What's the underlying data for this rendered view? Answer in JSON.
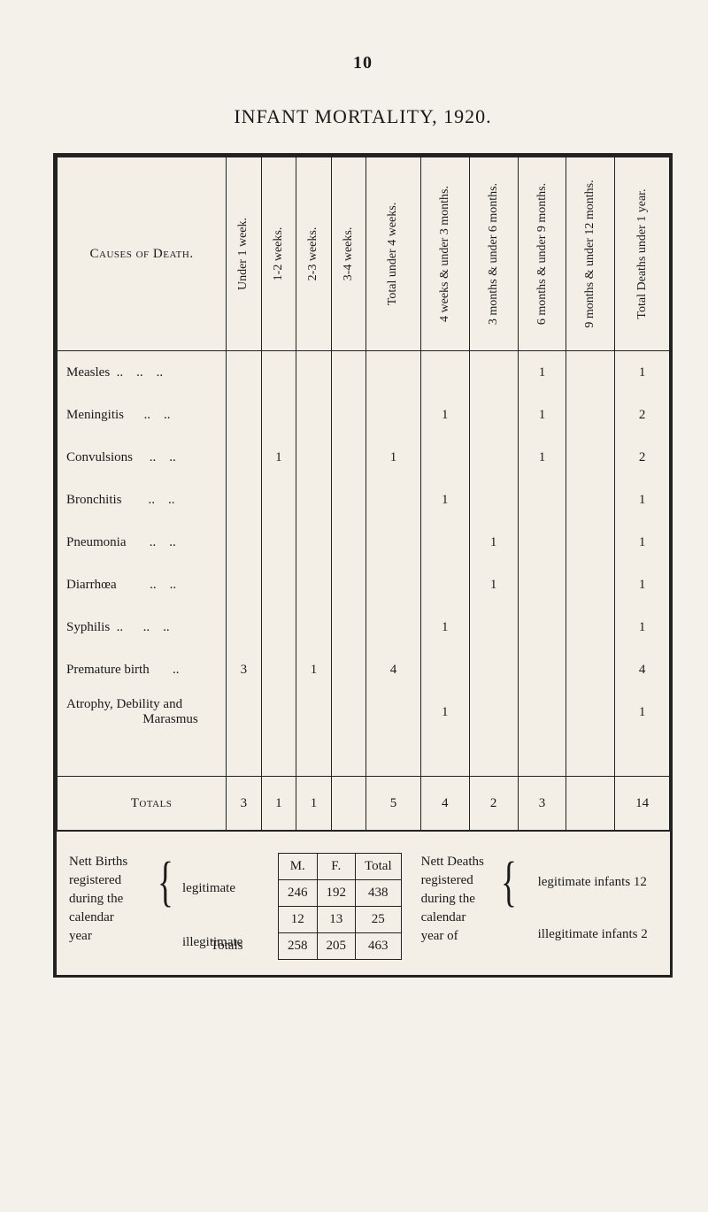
{
  "page_number": "10",
  "title": "INFANT MORTALITY, 1920.",
  "main_table": {
    "caption_col": "Causes of Death.",
    "columns": [
      "Under 1 week.",
      "1-2 weeks.",
      "2-3 weeks.",
      "3-4 weeks.",
      "Total under 4 weeks.",
      "4 weeks & under 3 months.",
      "3 months & under 6 months.",
      "6 months & under 9 months.",
      "9 months & under 12 months.",
      "Total Deaths under 1 year."
    ],
    "rows": [
      {
        "name": "Measles  ..    ..    ..",
        "cells": [
          "",
          "",
          "",
          "",
          "",
          "",
          "",
          "1",
          "",
          "1"
        ]
      },
      {
        "name": "Meningitis      ..    ..",
        "cells": [
          "",
          "",
          "",
          "",
          "",
          "1",
          "",
          "1",
          "",
          "2"
        ]
      },
      {
        "name": "Convulsions     ..    ..",
        "cells": [
          "",
          "1",
          "",
          "",
          "1",
          "",
          "",
          "1",
          "",
          "2"
        ]
      },
      {
        "name": "Bronchitis        ..    ..",
        "cells": [
          "",
          "",
          "",
          "",
          "",
          "1",
          "",
          "",
          "",
          "1"
        ]
      },
      {
        "name": "Pneumonia       ..    ..",
        "cells": [
          "",
          "",
          "",
          "",
          "",
          "",
          "1",
          "",
          "",
          "1"
        ]
      },
      {
        "name": "Diarrhœa          ..    ..",
        "cells": [
          "",
          "",
          "",
          "",
          "",
          "",
          "1",
          "",
          "",
          "1"
        ]
      },
      {
        "name": "Syphilis  ..      ..    ..",
        "cells": [
          "",
          "",
          "",
          "",
          "",
          "1",
          "",
          "",
          "",
          "1"
        ]
      },
      {
        "name": "Premature birth       ..",
        "cells": [
          "3",
          "",
          "1",
          "",
          "4",
          "",
          "",
          "",
          "",
          "4"
        ]
      },
      {
        "name": "Atrophy, Debility and\n                       Marasmus",
        "cells": [
          "",
          "",
          "",
          "",
          "",
          "1",
          "",
          "",
          "",
          "1"
        ]
      }
    ],
    "totals_label": "Totals",
    "totals": [
      "3",
      "1",
      "1",
      "",
      "5",
      "4",
      "2",
      "3",
      "",
      "14"
    ]
  },
  "births_table": {
    "headers": [
      "M.",
      "F.",
      "Total"
    ],
    "rows": [
      [
        "246",
        "192",
        "438"
      ],
      [
        "12",
        "13",
        "25"
      ]
    ],
    "totals_label": "Totals",
    "totals": [
      "258",
      "205",
      "463"
    ]
  },
  "births_label_lines": [
    "Nett Births",
    "registered",
    "during the",
    "calendar",
    "year"
  ],
  "births_legit_labels": {
    "legitimate": "legitimate",
    "illegitimate": "illegitimate"
  },
  "deaths_label_lines": [
    "Nett Deaths",
    "registered",
    "during the",
    "calendar",
    "year of"
  ],
  "deaths_right": {
    "line1": "legitimate infants 12",
    "line2": "illegitimate infants   2"
  },
  "col_widths": {
    "name": 174,
    "narrow": 36,
    "total_under4": 56,
    "bucket": 50,
    "last": 56
  },
  "colors": {
    "paper": "#f4f1ea",
    "ink": "#1a1a1a",
    "rule": "#222222"
  }
}
